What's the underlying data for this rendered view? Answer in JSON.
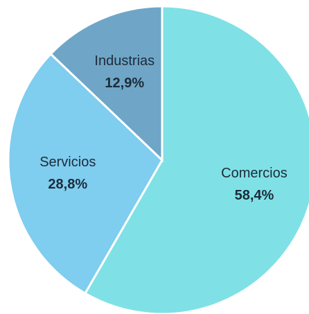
{
  "chart_data": {
    "type": "pie",
    "categories": [
      "Comercios",
      "Servicios",
      "Industrias"
    ],
    "values": [
      58.4,
      28.8,
      12.9
    ],
    "value_labels": [
      "58,4%",
      "28,8%",
      "12,9%"
    ],
    "colors": [
      "#7fe1e6",
      "#7fcdef",
      "#6fa6c7"
    ]
  }
}
